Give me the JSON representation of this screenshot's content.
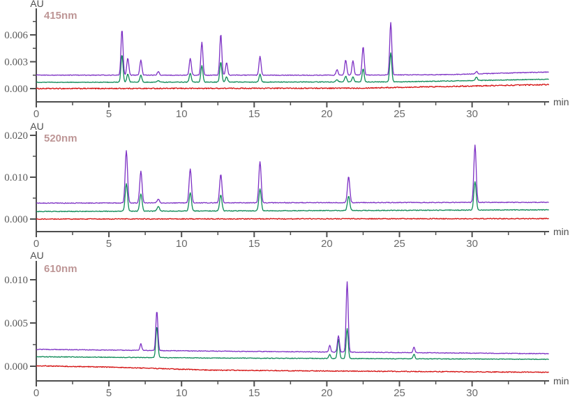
{
  "page": {
    "background": "#ffffff",
    "description": "Three stacked HPLC chromatogram panels (absorbance vs time) with overlaid purple, green and red traces"
  },
  "colors": {
    "axis": "#4d4d4d",
    "trace_purple": "#7d30c4",
    "trace_green": "#0e8a57",
    "trace_red": "#d40f0f"
  },
  "chart_data": [
    {
      "type": "line",
      "title": "415nm",
      "ylabel": "AU",
      "xlabel": "min",
      "x_max": 35.3,
      "x_ticks": [
        0,
        5,
        10,
        15,
        20,
        25,
        30
      ],
      "x_minor_step": 2.5,
      "y_ticks": [
        0.0,
        0.003,
        0.006
      ],
      "y_tick_labels": [
        "0.000",
        "0.003",
        "0.006"
      ],
      "y_minor_step": 0.0015,
      "ylim": [
        -0.0015,
        0.009
      ],
      "peak_sigma": 0.07,
      "series": [
        {
          "name": "purple",
          "color": "#7d30c4",
          "noise": 4e-05,
          "baseline_points": [
            [
              0,
              0.0015
            ],
            [
              20,
              0.0015
            ],
            [
              28,
              0.00155
            ],
            [
              35.3,
              0.00185
            ]
          ],
          "peaks": [
            {
              "t": 5.9,
              "apex": 0.0066
            },
            {
              "t": 6.3,
              "apex": 0.0034
            },
            {
              "t": 7.2,
              "apex": 0.0032
            },
            {
              "t": 8.4,
              "apex": 0.0019
            },
            {
              "t": 10.6,
              "apex": 0.0034
            },
            {
              "t": 11.4,
              "apex": 0.0052
            },
            {
              "t": 12.7,
              "apex": 0.0061
            },
            {
              "t": 13.1,
              "apex": 0.0029
            },
            {
              "t": 15.4,
              "apex": 0.0036
            },
            {
              "t": 20.7,
              "apex": 0.0021
            },
            {
              "t": 21.3,
              "apex": 0.0032
            },
            {
              "t": 21.8,
              "apex": 0.0031
            },
            {
              "t": 22.5,
              "apex": 0.0047
            },
            {
              "t": 24.4,
              "apex": 0.0074
            },
            {
              "t": 30.3,
              "apex": 0.0019
            }
          ]
        },
        {
          "name": "green",
          "color": "#0e8a57",
          "noise": 4e-05,
          "baseline_points": [
            [
              0,
              0.0007
            ],
            [
              25,
              0.00075
            ],
            [
              35.3,
              0.00105
            ]
          ],
          "peaks": [
            {
              "t": 5.9,
              "apex": 0.0038
            },
            {
              "t": 6.3,
              "apex": 0.0016
            },
            {
              "t": 7.2,
              "apex": 0.0015
            },
            {
              "t": 8.4,
              "apex": 0.0009
            },
            {
              "t": 10.6,
              "apex": 0.0017
            },
            {
              "t": 11.4,
              "apex": 0.0026
            },
            {
              "t": 12.7,
              "apex": 0.003
            },
            {
              "t": 13.1,
              "apex": 0.0013
            },
            {
              "t": 15.4,
              "apex": 0.0016
            },
            {
              "t": 20.7,
              "apex": 0.001
            },
            {
              "t": 21.3,
              "apex": 0.0014
            },
            {
              "t": 21.8,
              "apex": 0.0013
            },
            {
              "t": 22.5,
              "apex": 0.0022
            },
            {
              "t": 24.4,
              "apex": 0.004
            },
            {
              "t": 30.3,
              "apex": 0.0013
            }
          ]
        },
        {
          "name": "red",
          "color": "#d40f0f",
          "noise": 6e-05,
          "baseline_points": [
            [
              0,
              0.0
            ],
            [
              22,
              5e-05
            ],
            [
              35.3,
              0.00045
            ]
          ],
          "peaks": []
        }
      ]
    },
    {
      "type": "line",
      "title": "520nm",
      "ylabel": "AU",
      "xlabel": "min",
      "x_max": 35.3,
      "x_ticks": [
        0,
        5,
        10,
        15,
        20,
        25,
        30
      ],
      "x_minor_step": 2.5,
      "y_ticks": [
        0.0,
        0.01,
        0.02
      ],
      "y_tick_labels": [
        "0.000",
        "0.010",
        "0.020"
      ],
      "y_minor_step": 0.005,
      "ylim": [
        -0.003,
        0.021
      ],
      "peak_sigma": 0.08,
      "series": [
        {
          "name": "purple",
          "color": "#7d30c4",
          "noise": 9e-05,
          "baseline_points": [
            [
              0,
              0.0038
            ],
            [
              35.3,
              0.004
            ]
          ],
          "peaks": [
            {
              "t": 6.2,
              "apex": 0.0163
            },
            {
              "t": 7.2,
              "apex": 0.0114
            },
            {
              "t": 8.4,
              "apex": 0.0047
            },
            {
              "t": 10.6,
              "apex": 0.012
            },
            {
              "t": 12.7,
              "apex": 0.0107
            },
            {
              "t": 15.4,
              "apex": 0.0137
            },
            {
              "t": 21.5,
              "apex": 0.0101
            },
            {
              "t": 30.2,
              "apex": 0.0176
            }
          ]
        },
        {
          "name": "green",
          "color": "#0e8a57",
          "noise": 9e-05,
          "baseline_points": [
            [
              0,
              0.0018
            ],
            [
              35.3,
              0.0022
            ]
          ],
          "peaks": [
            {
              "t": 6.2,
              "apex": 0.0085
            },
            {
              "t": 7.2,
              "apex": 0.006
            },
            {
              "t": 8.4,
              "apex": 0.003
            },
            {
              "t": 10.6,
              "apex": 0.0063
            },
            {
              "t": 12.7,
              "apex": 0.0057
            },
            {
              "t": 15.4,
              "apex": 0.0072
            },
            {
              "t": 21.5,
              "apex": 0.0055
            },
            {
              "t": 30.2,
              "apex": 0.009
            }
          ]
        },
        {
          "name": "red",
          "color": "#d40f0f",
          "noise": 0.0001,
          "baseline_points": [
            [
              0,
              0.0
            ],
            [
              35.3,
              0.0001
            ]
          ],
          "peaks": []
        }
      ]
    },
    {
      "type": "line",
      "title": "610nm",
      "ylabel": "AU",
      "xlabel": "min",
      "x_max": 35.3,
      "x_ticks": [
        0,
        5,
        10,
        15,
        20,
        25,
        30
      ],
      "x_minor_step": 2.5,
      "y_ticks": [
        0.0,
        0.005,
        0.01
      ],
      "y_tick_labels": [
        "0.000",
        "0.005",
        "0.010"
      ],
      "y_minor_step": 0.0025,
      "ylim": [
        -0.0017,
        0.0122
      ],
      "peak_sigma": 0.07,
      "series": [
        {
          "name": "purple",
          "color": "#7d30c4",
          "noise": 4e-05,
          "baseline_points": [
            [
              0,
              0.00195
            ],
            [
              12,
              0.00175
            ],
            [
              35.3,
              0.00145
            ]
          ],
          "peaks": [
            {
              "t": 7.2,
              "apex": 0.0026,
              "s": 0.06
            },
            {
              "t": 8.3,
              "apex": 0.0064
            },
            {
              "t": 20.2,
              "apex": 0.0024,
              "s": 0.06
            },
            {
              "t": 20.8,
              "apex": 0.0035
            },
            {
              "t": 21.4,
              "apex": 0.0098
            },
            {
              "t": 26.0,
              "apex": 0.0022,
              "s": 0.06
            }
          ]
        },
        {
          "name": "green",
          "color": "#0e8a57",
          "noise": 4e-05,
          "baseline_points": [
            [
              0,
              0.0011
            ],
            [
              12,
              0.00095
            ],
            [
              35.3,
              0.0008
            ]
          ],
          "peaks": [
            {
              "t": 8.3,
              "apex": 0.0046
            },
            {
              "t": 20.2,
              "apex": 0.0014,
              "s": 0.06
            },
            {
              "t": 20.8,
              "apex": 0.0031
            },
            {
              "t": 21.4,
              "apex": 0.0044
            },
            {
              "t": 26.0,
              "apex": 0.0014,
              "s": 0.06
            }
          ]
        },
        {
          "name": "red",
          "color": "#d40f0f",
          "noise": 5e-05,
          "baseline_points": [
            [
              0,
              5e-05
            ],
            [
              5,
              -0.0001
            ],
            [
              12,
              -0.00045
            ],
            [
              20,
              -0.00055
            ],
            [
              35.3,
              -0.0007
            ]
          ],
          "peaks": []
        }
      ]
    }
  ]
}
